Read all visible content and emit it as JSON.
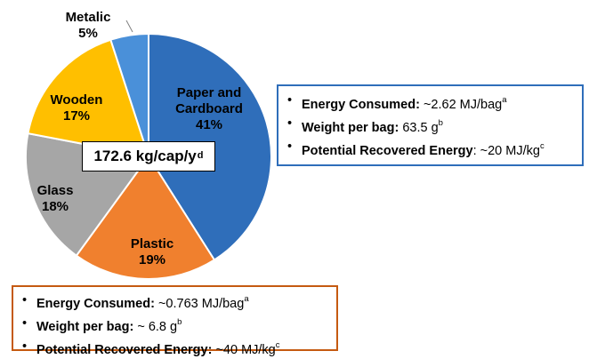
{
  "chart_data": {
    "type": "pie",
    "slices": [
      {
        "name": "Paper and Cardboard",
        "lines": [
          "Paper and",
          "Cardboard"
        ],
        "value": 41,
        "label": "41%",
        "color": "#2F6EBA",
        "text_color": "#000000"
      },
      {
        "name": "Plastic",
        "lines": [
          "Plastic"
        ],
        "value": 19,
        "label": "19%",
        "color": "#F0802E",
        "text_color": "#000000"
      },
      {
        "name": "Glass",
        "lines": [
          "Glass"
        ],
        "value": 18,
        "label": "18%",
        "color": "#A6A6A6",
        "text_color": "#000000"
      },
      {
        "name": "Wooden",
        "lines": [
          "Wooden"
        ],
        "value": 17,
        "label": "17%",
        "color": "#FFBF00",
        "text_color": "#000000"
      },
      {
        "name": "Metalic",
        "lines": [
          "Metalic"
        ],
        "value": 5,
        "label": "5%",
        "color": "#4A90D9",
        "text_color": "#000000"
      }
    ],
    "center": {
      "text": "172.6 kg/cap/y",
      "sup": "d"
    }
  },
  "paper_info": {
    "items": [
      {
        "key": "Energy Consumed:",
        "value": " ~2.62 MJ/bag",
        "sup": "a"
      },
      {
        "key": "Weight per bag:",
        "value": " 63.5 g",
        "sup": "b"
      },
      {
        "key": "Potential Recovered Energy",
        "value": ": ~20 MJ/kg",
        "sup": "c"
      }
    ]
  },
  "plastic_info": {
    "items": [
      {
        "key": "Energy Consumed:",
        "value": " ~0.763 MJ/bag",
        "sup": "a"
      },
      {
        "key": "Weight per bag:",
        "value": " ~ 6.8 g",
        "sup": "b"
      },
      {
        "key": "Potential Recovered Energy:",
        "value": " ~40 MJ/kg",
        "sup": "c"
      }
    ]
  }
}
